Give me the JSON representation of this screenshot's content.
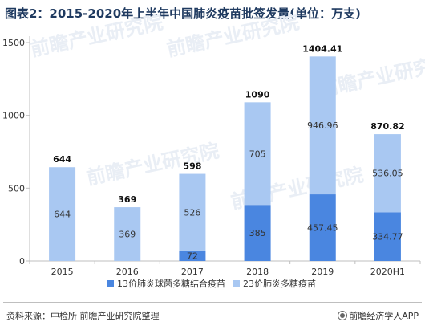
{
  "title": "图表2：2015-2020年上半年中国肺炎疫苗批签发量(单位：万支)",
  "source": "资料来源：中检所 前瞻产业研究院整理",
  "brand": "前瞻经济学人APP",
  "watermark": "前瞻产业研究院",
  "chart_data": {
    "type": "bar",
    "stacked": true,
    "categories": [
      "2015",
      "2016",
      "2017",
      "2018",
      "2019",
      "2020H1"
    ],
    "series": [
      {
        "name": "13价肺炎球菌多糖结合疫苗",
        "color": "#4a86e0",
        "values": [
          null,
          null,
          72,
          385,
          457.45,
          334.77
        ],
        "labels": [
          "",
          "",
          "72",
          "385",
          "457.45",
          "334.77"
        ]
      },
      {
        "name": "23价肺炎多糖疫苗",
        "color": "#a9c8f2",
        "values": [
          644,
          369,
          526,
          705,
          946.96,
          536.05
        ],
        "labels": [
          "644",
          "369",
          "526",
          "705",
          "946.96",
          "536.05"
        ]
      }
    ],
    "totals": [
      644,
      369,
      598,
      1090,
      1404.41,
      870.82
    ],
    "total_labels": [
      "644",
      "369",
      "598",
      "1090",
      "1404.41",
      "870.82"
    ],
    "y_ticks": [
      0,
      500,
      1000,
      1500
    ],
    "ylim": [
      0,
      1500
    ],
    "grid": false,
    "legend": "bottom-center"
  }
}
